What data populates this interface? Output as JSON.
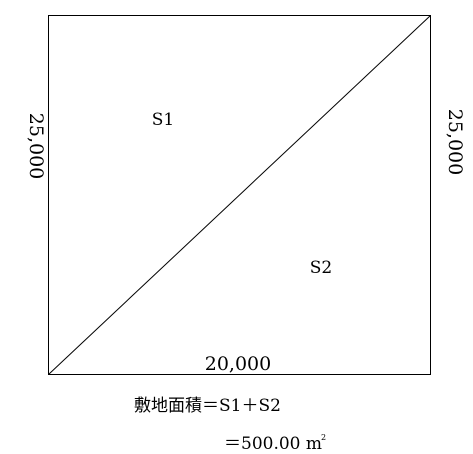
{
  "diagram": {
    "labels": {
      "left_dimension": "25,000",
      "right_dimension": "25,000",
      "bottom_dimension": "20,000",
      "region_upper": "S1",
      "region_lower": "S2"
    },
    "formula": {
      "line1": "敷地面積＝S1＋S2",
      "line2": "＝500.00 ㎡",
      "line2_value": "＝500.00 m",
      "line2_superscript": "2"
    }
  }
}
